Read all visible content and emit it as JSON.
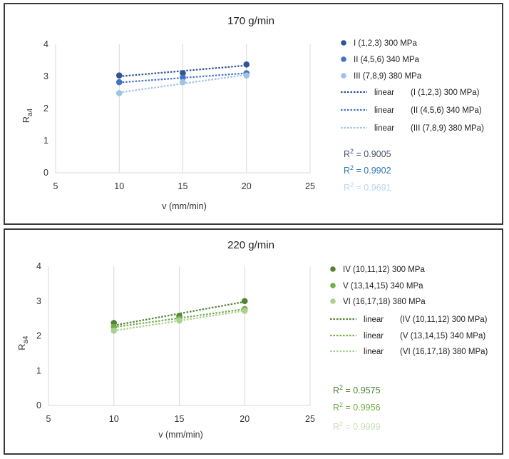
{
  "charts": [
    {
      "id": "top",
      "chart_data": {
        "type": "scatter",
        "title": "170 g/min",
        "xlabel": "v (mm/min)",
        "ylabel_main": "R",
        "ylabel_sub": "a4",
        "xlim": [
          5,
          25
        ],
        "ylim": [
          0,
          4
        ],
        "xticks": [
          5,
          10,
          15,
          20,
          25
        ],
        "yticks": [
          0,
          1,
          2,
          3,
          4
        ],
        "grid": "vertical",
        "legend_position": "right",
        "series": [
          {
            "name": "I (1,2,3) 300 MPa",
            "color": "#2f5597",
            "x": [
              10,
              15,
              20
            ],
            "y": [
              3.03,
              3.1,
              3.37
            ],
            "trend": {
              "start": [
                10,
                3.0
              ],
              "end": [
                20,
                3.34
              ]
            }
          },
          {
            "name": "II (4,5,6) 340 MPa",
            "color": "#4472c4",
            "x": [
              10,
              15,
              20
            ],
            "y": [
              2.82,
              2.96,
              3.1
            ],
            "trend": {
              "start": [
                10,
                2.81
              ],
              "end": [
                20,
                3.1
              ]
            }
          },
          {
            "name": "III (7,8,9) 380 MPa",
            "color": "#9dc3e6",
            "x": [
              10,
              15,
              20
            ],
            "y": [
              2.48,
              2.82,
              3.03
            ],
            "trend": {
              "start": [
                10,
                2.5
              ],
              "end": [
                20,
                3.05
              ]
            }
          }
        ],
        "trend_legend": [
          {
            "word": "linear",
            "label": "(I (1,2,3) 300 MPa)"
          },
          {
            "word": "linear",
            "label": "(II (4,5,6) 340 MPa)"
          },
          {
            "word": "linear",
            "label": "(III (7,8,9) 380 MPa)"
          }
        ],
        "r2": [
          {
            "base": "R",
            "sup": "2",
            "rest": " = 0.9005",
            "color": "#44546a"
          },
          {
            "base": "R",
            "sup": "2",
            "rest": " = 0.9902",
            "color": "#2e75b6"
          },
          {
            "base": "R",
            "sup": "2",
            "rest": " = 0.9691",
            "color": "#bdd7ee"
          }
        ]
      }
    },
    {
      "id": "bottom",
      "chart_data": {
        "type": "scatter",
        "title": "220 g/min",
        "xlabel": "v (mm/min)",
        "ylabel_main": "R",
        "ylabel_sub": "a4",
        "xlim": [
          5,
          25
        ],
        "ylim": [
          0,
          4
        ],
        "xticks": [
          5,
          10,
          15,
          20,
          25
        ],
        "yticks": [
          0,
          1,
          2,
          3,
          4
        ],
        "grid": "vertical",
        "legend_position": "right",
        "series": [
          {
            "name": "IV (10,11,12) 300 MPa",
            "color": "#548235",
            "x": [
              10,
              15,
              20
            ],
            "y": [
              2.37,
              2.57,
              3.0
            ],
            "trend": {
              "start": [
                10,
                2.3
              ],
              "end": [
                20,
                2.98
              ]
            }
          },
          {
            "name": "V (13,14,15) 340 MPa",
            "color": "#70ad47",
            "x": [
              10,
              15,
              20
            ],
            "y": [
              2.26,
              2.5,
              2.77
            ],
            "trend": {
              "start": [
                10,
                2.25
              ],
              "end": [
                20,
                2.77
              ]
            }
          },
          {
            "name": "VI (16,17,18) 380 MPa",
            "color": "#a9d18e",
            "x": [
              10,
              15,
              20
            ],
            "y": [
              2.15,
              2.44,
              2.72
            ],
            "trend": {
              "start": [
                10,
                2.15
              ],
              "end": [
                20,
                2.72
              ]
            }
          }
        ],
        "trend_legend": [
          {
            "word": "linear",
            "label": "(IV (10,11,12) 300 MPa)"
          },
          {
            "word": "linear",
            "label": "(V (13,14,15) 340 MPa)"
          },
          {
            "word": "linear",
            "label": "(VI (16,17,18) 380 MPa)"
          }
        ],
        "r2": [
          {
            "base": "R",
            "sup": "2",
            "rest": " = 0.9575",
            "color": "#548235"
          },
          {
            "base": "R",
            "sup": "2",
            "rest": " = 0.9956",
            "color": "#70ad47"
          },
          {
            "base": "R",
            "sup": "2",
            "rest": " = 0.9999",
            "color": "#c5e0b4"
          }
        ]
      }
    }
  ]
}
